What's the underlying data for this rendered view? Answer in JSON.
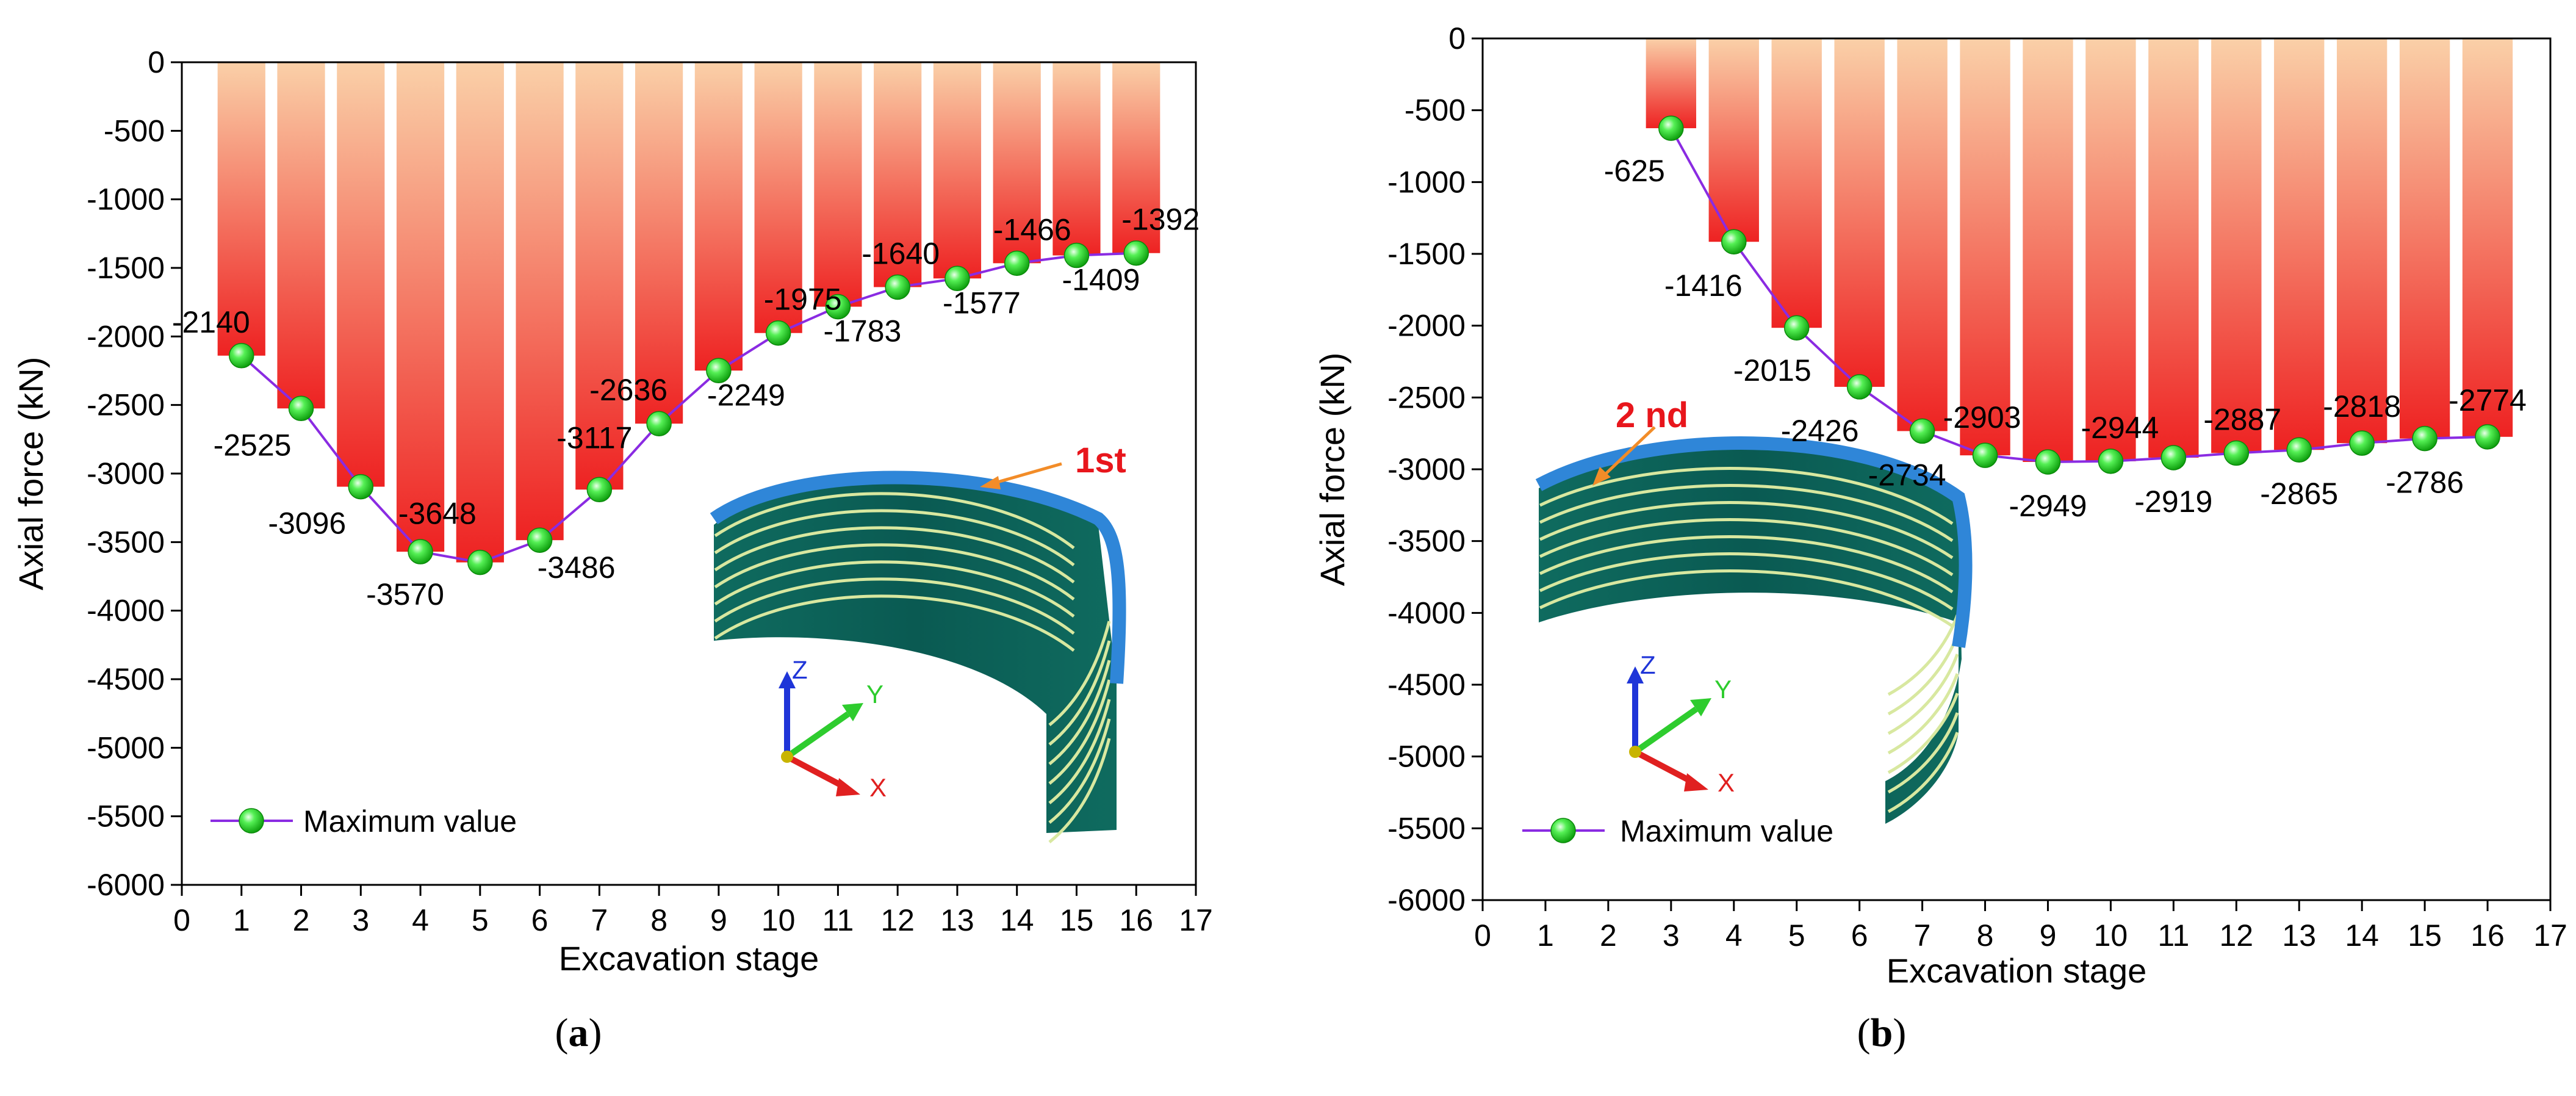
{
  "chart_data": [
    {
      "type": "bar",
      "panel_label": "a",
      "xlabel": "Excavation stage",
      "ylabel": "Axial force (kN)",
      "xlim": [
        0,
        17
      ],
      "ylim": [
        -6000,
        0
      ],
      "x_ticks": [
        0,
        1,
        2,
        3,
        4,
        5,
        6,
        7,
        8,
        9,
        10,
        11,
        12,
        13,
        14,
        15,
        16,
        17
      ],
      "y_ticks": [
        0,
        -500,
        -1000,
        -1500,
        -2000,
        -2500,
        -3000,
        -3500,
        -4000,
        -4500,
        -5000,
        -5500,
        -6000
      ],
      "x": [
        1,
        2,
        3,
        4,
        5,
        6,
        7,
        8,
        9,
        10,
        11,
        12,
        13,
        14,
        15,
        16
      ],
      "values": [
        -2140,
        -2525,
        -3096,
        -3570,
        -3648,
        -3486,
        -3117,
        -2636,
        -2249,
        -1975,
        -1783,
        -1640,
        -1577,
        -1466,
        -1409,
        -1392
      ],
      "data_labels": [
        "-2140",
        "-2525",
        "-3096",
        "-3570",
        "-3648",
        "-3486",
        "-3117",
        "-2636",
        "-2249",
        "-1975",
        "-1783",
        "-1640",
        "-1577",
        "-1466",
        "-1409",
        "-1392"
      ],
      "series": [
        {
          "name": "Maximum value",
          "values": [
            -2140,
            -2525,
            -3096,
            -3570,
            -3648,
            -3486,
            -3117,
            -2636,
            -2249,
            -1975,
            -1783,
            -1640,
            -1577,
            -1466,
            -1409,
            -1392
          ]
        }
      ],
      "legend": {
        "label": "Maximum value",
        "position": "bottom-left"
      },
      "annotation": {
        "text": "1st",
        "color": "#e8161c"
      },
      "bar_gradient": [
        "#fad0a8",
        "#ee2222"
      ],
      "line_color": "#8a2be2",
      "marker_color": "#1adc1a",
      "grid": false
    },
    {
      "type": "bar",
      "panel_label": "b",
      "xlabel": "Excavation stage",
      "ylabel": "Axial force (kN)",
      "xlim": [
        0,
        17
      ],
      "ylim": [
        -6000,
        0
      ],
      "x_ticks": [
        0,
        1,
        2,
        3,
        4,
        5,
        6,
        7,
        8,
        9,
        10,
        11,
        12,
        13,
        14,
        15,
        16,
        17
      ],
      "y_ticks": [
        0,
        -500,
        -1000,
        -1500,
        -2000,
        -2500,
        -3000,
        -3500,
        -4000,
        -4500,
        -5000,
        -5500,
        -6000
      ],
      "x": [
        3,
        4,
        5,
        6,
        7,
        8,
        9,
        10,
        11,
        12,
        13,
        14,
        15,
        16
      ],
      "values": [
        -625,
        -1416,
        -2015,
        -2426,
        -2734,
        -2903,
        -2949,
        -2944,
        -2919,
        -2887,
        -2865,
        -2818,
        -2786,
        -2774
      ],
      "data_labels": [
        "-625",
        "-1416",
        "-2015",
        "-2426",
        "-2734",
        "-2903",
        "-2949",
        "-2944",
        "-2919",
        "-2887",
        "-2865",
        "-2818",
        "-2786",
        "-2774"
      ],
      "series": [
        {
          "name": "Maximum value",
          "values": [
            -625,
            -1416,
            -2015,
            -2426,
            -2734,
            -2903,
            -2949,
            -2944,
            -2919,
            -2887,
            -2865,
            -2818,
            -2786,
            -2774
          ]
        }
      ],
      "legend": {
        "label": "Maximum value",
        "position": "bottom-left"
      },
      "annotation": {
        "text": "2 nd",
        "color": "#e8161c"
      },
      "bar_gradient": [
        "#fad0a8",
        "#ee2222"
      ],
      "line_color": "#8a2be2",
      "marker_color": "#1adc1a",
      "grid": false
    }
  ],
  "axis_triad": {
    "x": "X",
    "y": "Y",
    "z": "Z",
    "x_color": "#e02020",
    "y_color": "#2ecc2e",
    "z_color": "#1f35d8"
  },
  "captions": {
    "a": "a",
    "b": "b"
  }
}
